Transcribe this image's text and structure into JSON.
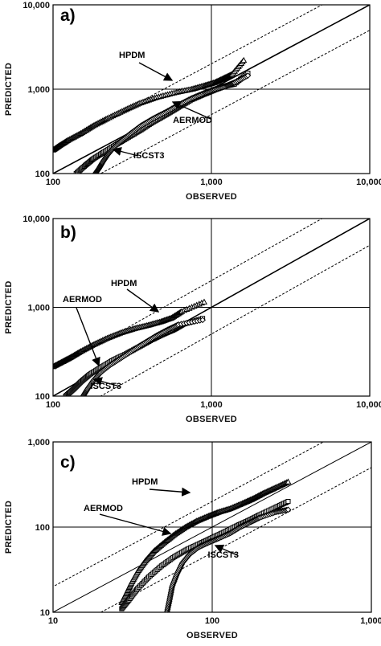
{
  "chart_data": [
    {
      "type": "scatter",
      "panel_label": "a)",
      "xlabel": "OBSERVED",
      "ylabel": "PREDICTED",
      "xscale": "log",
      "yscale": "log",
      "xlim": [
        100,
        10000
      ],
      "ylim": [
        100,
        10000
      ],
      "xticks": [
        "100",
        "1,000",
        "10,000"
      ],
      "yticks": [
        "100",
        "1,000",
        "10,000"
      ],
      "reference_lines": {
        "one_to_one": true,
        "factor_of_two": true
      },
      "grid": "crosshair at 1,000",
      "series": [
        {
          "name": "HPDM",
          "marker": "triangle",
          "x": [
            100,
            110,
            125,
            150,
            180,
            220,
            280,
            350,
            450,
            600,
            750,
            900,
            1050,
            1200,
            1350,
            1600
          ],
          "y": [
            190,
            215,
            250,
            300,
            370,
            450,
            560,
            680,
            800,
            920,
            1000,
            1100,
            1200,
            1350,
            1500,
            2200
          ]
        },
        {
          "name": "AERMOD",
          "marker": "square",
          "x": [
            140,
            160,
            180,
            210,
            250,
            300,
            360,
            430,
            520,
            620,
            750,
            900,
            1050,
            1250,
            1400,
            1700
          ],
          "y": [
            100,
            125,
            150,
            180,
            220,
            270,
            330,
            410,
            500,
            610,
            750,
            870,
            980,
            1100,
            1150,
            1550
          ]
        },
        {
          "name": "ISCST3",
          "marker": "diamond",
          "x": [
            185,
            195,
            205,
            220,
            240,
            270,
            310,
            360,
            430,
            520,
            620,
            750,
            900,
            1050,
            1250,
            1400,
            1700
          ],
          "y": [
            100,
            115,
            135,
            165,
            200,
            245,
            300,
            370,
            450,
            540,
            650,
            780,
            900,
            1000,
            1100,
            1200,
            1450
          ]
        }
      ],
      "annotations": [
        "HPDM",
        "AERMOD",
        "ISCST3"
      ]
    },
    {
      "type": "scatter",
      "panel_label": "b)",
      "xlabel": "OBSERVED",
      "ylabel": "PREDICTED",
      "xscale": "log",
      "yscale": "log",
      "xlim": [
        100,
        10000
      ],
      "ylim": [
        100,
        10000
      ],
      "xticks": [
        "100",
        "1,000",
        "10,000"
      ],
      "yticks": [
        "100",
        "1,000",
        "10,000"
      ],
      "reference_lines": {
        "one_to_one": true,
        "factor_of_two": true
      },
      "grid": "crosshair at 1,000",
      "series": [
        {
          "name": "HPDM",
          "marker": "triangle",
          "x": [
            100,
            115,
            130,
            150,
            180,
            220,
            270,
            330,
            400,
            480,
            560,
            650,
            900
          ],
          "y": [
            215,
            245,
            275,
            320,
            380,
            450,
            520,
            580,
            630,
            690,
            760,
            900,
            1150
          ]
        },
        {
          "name": "AERMOD",
          "marker": "square",
          "x": [
            120,
            135,
            150,
            170,
            200,
            240,
            290,
            350,
            420,
            500,
            580,
            660,
            880
          ],
          "y": [
            100,
            120,
            145,
            175,
            210,
            255,
            300,
            360,
            430,
            500,
            560,
            640,
            750
          ]
        },
        {
          "name": "ISCST3",
          "marker": "diamond",
          "x": [
            155,
            165,
            180,
            200,
            230,
            270,
            320,
            380,
            450,
            530,
            620,
            880
          ],
          "y": [
            100,
            120,
            150,
            185,
            225,
            270,
            330,
            400,
            480,
            560,
            640,
            720
          ]
        }
      ],
      "annotations": [
        "HPDM",
        "AERMOD",
        "ISCST3"
      ]
    },
    {
      "type": "scatter",
      "panel_label": "c)",
      "xlabel": "OBSERVED",
      "ylabel": "PREDICTED",
      "xscale": "log",
      "yscale": "log",
      "xlim": [
        10,
        1000
      ],
      "ylim": [
        10,
        1000
      ],
      "xticks": [
        "10",
        "100",
        "1,000"
      ],
      "yticks": [
        "10",
        "100",
        "1,000"
      ],
      "reference_lines": {
        "one_to_one": true,
        "factor_of_two": true
      },
      "grid": "crosshair at 100",
      "series": [
        {
          "name": "HPDM",
          "marker": "triangle",
          "x": [
            27,
            29,
            31,
            34,
            38,
            43,
            50,
            58,
            68,
            80,
            95,
            110,
            130,
            155,
            180,
            210,
            250,
            300
          ],
          "y": [
            13,
            17,
            22,
            30,
            40,
            52,
            66,
            82,
            100,
            118,
            135,
            150,
            165,
            190,
            215,
            250,
            290,
            340
          ]
        },
        {
          "name": "AERMOD",
          "marker": "square",
          "x": [
            27,
            30,
            34,
            40,
            48,
            58,
            70,
            85,
            100,
            120,
            145,
            170,
            200,
            250,
            300
          ],
          "y": [
            11,
            14,
            19,
            26,
            35,
            45,
            55,
            65,
            75,
            88,
            105,
            120,
            140,
            170,
            200
          ]
        },
        {
          "name": "ISCST3",
          "marker": "diamond",
          "x": [
            52,
            54,
            56,
            60,
            65,
            72,
            82,
            95,
            110,
            130,
            150,
            175,
            200,
            250,
            300
          ],
          "y": [
            10,
            14,
            20,
            28,
            38,
            48,
            58,
            66,
            74,
            85,
            100,
            115,
            130,
            150,
            160
          ]
        }
      ],
      "annotations": [
        "HPDM",
        "AERMOD",
        "ISCST3",
        "HPDM"
      ]
    }
  ]
}
